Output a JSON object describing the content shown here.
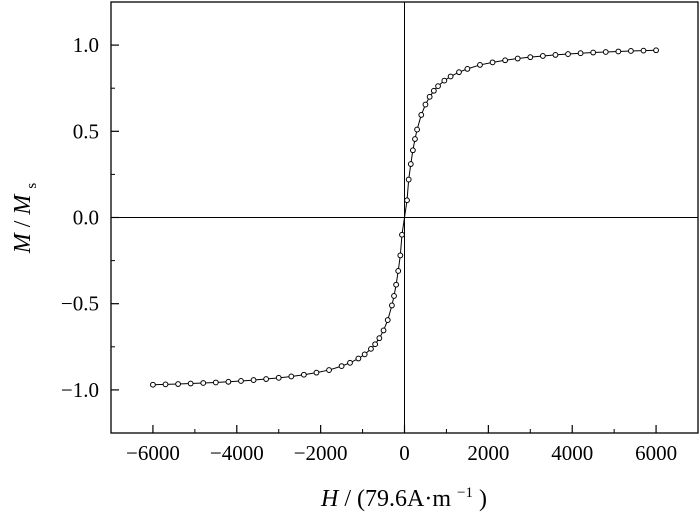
{
  "chart_data": {
    "type": "scatter",
    "title": "",
    "xlabel": {
      "symbol": "H",
      "unit": "(79.6A·m",
      "unit_exp": "−1",
      "close": ")"
    },
    "ylabel": {
      "num": "M",
      "den": "M",
      "den_sub": "s"
    },
    "xlim": [
      -7000,
      7000
    ],
    "ylim": [
      -1.25,
      1.25
    ],
    "xticks": [
      -6000,
      -4000,
      -2000,
      0,
      2000,
      4000,
      6000
    ],
    "xtick_labels": [
      "−6000",
      "−4000",
      "−2000",
      "0",
      "2000",
      "4000",
      "6000"
    ],
    "yticks": [
      -1.0,
      -0.5,
      0.0,
      0.5,
      1.0
    ],
    "ytick_labels": [
      "−1.0",
      "−0.5",
      "0.0",
      "0.5",
      "1.0"
    ],
    "grid": false,
    "zero_lines": true,
    "series": [
      {
        "marker": "open-circle",
        "line": true,
        "color": "#000000",
        "x": [
          -6000,
          -5700,
          -5400,
          -5100,
          -4800,
          -4500,
          -4200,
          -3900,
          -3600,
          -3300,
          -3000,
          -2700,
          -2400,
          -2100,
          -1800,
          -1500,
          -1300,
          -1100,
          -950,
          -800,
          -700,
          -600,
          -500,
          -400,
          -300,
          -250,
          -200,
          -150,
          -100,
          -60,
          60,
          100,
          150,
          200,
          250,
          300,
          400,
          500,
          600,
          700,
          800,
          950,
          1100,
          1300,
          1500,
          1800,
          2100,
          2400,
          2700,
          3000,
          3300,
          3600,
          3900,
          4200,
          4500,
          4800,
          5100,
          5400,
          5700,
          6000
        ],
        "y": [
          -0.97,
          -0.968,
          -0.966,
          -0.963,
          -0.96,
          -0.957,
          -0.953,
          -0.948,
          -0.943,
          -0.937,
          -0.93,
          -0.922,
          -0.912,
          -0.9,
          -0.885,
          -0.862,
          -0.843,
          -0.818,
          -0.794,
          -0.762,
          -0.735,
          -0.7,
          -0.655,
          -0.595,
          -0.51,
          -0.455,
          -0.39,
          -0.31,
          -0.22,
          -0.1,
          0.1,
          0.22,
          0.31,
          0.39,
          0.455,
          0.51,
          0.595,
          0.655,
          0.7,
          0.735,
          0.762,
          0.794,
          0.818,
          0.843,
          0.862,
          0.885,
          0.9,
          0.912,
          0.922,
          0.93,
          0.937,
          0.943,
          0.948,
          0.953,
          0.957,
          0.96,
          0.963,
          0.966,
          0.968,
          0.97
        ]
      }
    ]
  }
}
